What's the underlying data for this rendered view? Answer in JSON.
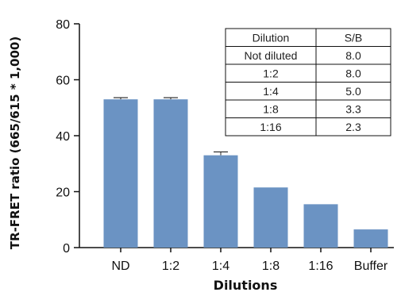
{
  "chart_data": {
    "type": "bar",
    "xlabel": "Dilutions",
    "ylabel": "TR-FRET ratio (665/615 * 1,000)",
    "categories": [
      "ND",
      "1:2",
      "1:4",
      "1:8",
      "1:16",
      "Buffer"
    ],
    "values": [
      53,
      53,
      33,
      21.5,
      15.5,
      6.5
    ],
    "error": [
      0.6,
      0.6,
      1.2,
      0,
      0,
      0
    ],
    "ylim": [
      0,
      80
    ],
    "yticks": [
      "0",
      "20",
      "40",
      "60",
      "80"
    ],
    "grid": false,
    "bar_color": "#6b93c3",
    "table": {
      "headers": [
        "Dilution",
        "S/B"
      ],
      "rows": [
        [
          "Not diluted",
          "8.0"
        ],
        [
          "1:2",
          "8.0"
        ],
        [
          "1:4",
          "5.0"
        ],
        [
          "1:8",
          "3.3"
        ],
        [
          "1:16",
          "2.3"
        ]
      ]
    }
  }
}
